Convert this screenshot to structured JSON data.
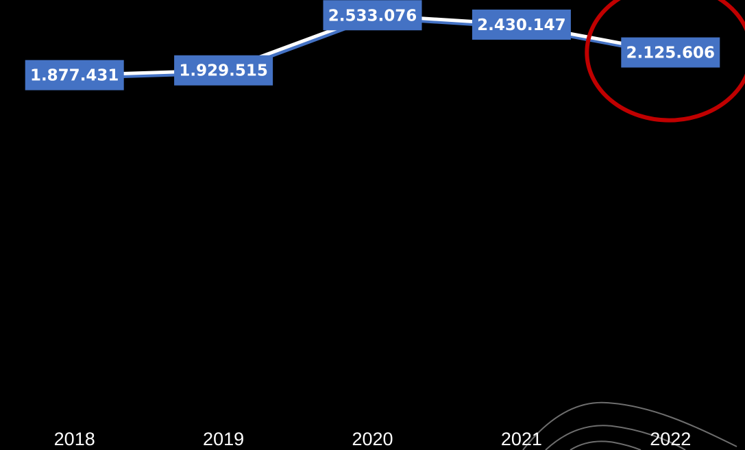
{
  "chart_data": {
    "type": "line",
    "categories": [
      "2018",
      "2019",
      "2020",
      "2021",
      "2022"
    ],
    "series": [
      {
        "values": [
          1877431,
          1929515,
          2533076,
          2430147,
          2125606
        ],
        "labels": [
          "1.877.431",
          "1.929.515",
          "2.533.076",
          "2.430.147",
          "2.125.606"
        ]
      }
    ],
    "title": "",
    "xlabel": "",
    "ylabel": "",
    "ylim": [
      -1800000,
      2700000
    ],
    "grid": false,
    "legend": "none",
    "highlight": {
      "category": "2022",
      "shape": "circle"
    },
    "colors": {
      "background": "#000000",
      "line": "#ffffff",
      "line_shadow": "#4472c4",
      "label_box": "#4472c4",
      "label_text": "#ffffff",
      "drop_line": "#ffffff",
      "highlight": "#c00000",
      "tick_text": "#ffffff",
      "decoration": "#6e6e6e"
    }
  }
}
